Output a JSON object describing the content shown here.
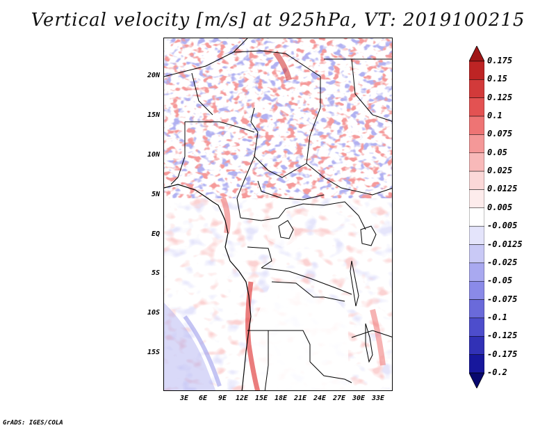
{
  "title": "Vertical velocity [m/s] at 925hPa, VT: 2019100215",
  "footer": "GrADS: IGES/COLA",
  "lat_ticks": [
    "20N",
    "15N",
    "10N",
    "5N",
    "EQ",
    "5S",
    "10S",
    "15S"
  ],
  "lon_ticks": [
    "3E",
    "6E",
    "9E",
    "12E",
    "15E",
    "18E",
    "21E",
    "24E",
    "27E",
    "30E",
    "33E"
  ],
  "colorbar": {
    "labels": [
      "0.175",
      "0.15",
      "0.125",
      "0.1",
      "0.075",
      "0.05",
      "0.025",
      "0.0125",
      "0.005",
      "-0.005",
      "-0.0125",
      "-0.025",
      "-0.05",
      "-0.075",
      "-0.1",
      "-0.125",
      "-0.175",
      "-0.2"
    ],
    "colors": [
      "#a01616",
      "#bd2424",
      "#d23a3a",
      "#e35252",
      "#ee7474",
      "#f49898",
      "#f8b9b9",
      "#fbd8d8",
      "#fdecec",
      "#ffffff",
      "#e4e4fb",
      "#c9c9f6",
      "#a9a9f0",
      "#8a8ae8",
      "#6a6ada",
      "#4d4dcc",
      "#3131b6",
      "#17179c",
      "#08086e"
    ]
  }
}
